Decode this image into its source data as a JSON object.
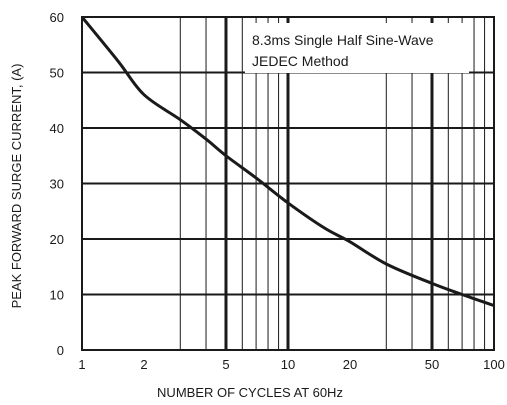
{
  "chart_data": {
    "type": "line",
    "xlabel": "NUMBER OF CYCLES AT 60Hz",
    "ylabel": "PEAK  FORWARD SURGE CURRENT, (A)",
    "x_scale": "log",
    "xlim": [
      1,
      100
    ],
    "ylim": [
      0,
      60
    ],
    "grid": true,
    "x_ticks": [
      {
        "value": 1,
        "label": "1"
      },
      {
        "value": 2,
        "label": "2"
      },
      {
        "value": 5,
        "label": "5"
      },
      {
        "value": 10,
        "label": "10"
      },
      {
        "value": 20,
        "label": "20"
      },
      {
        "value": 50,
        "label": "50"
      },
      {
        "value": 100,
        "label": "100"
      }
    ],
    "y_ticks": [
      {
        "value": 0,
        "label": "0"
      },
      {
        "value": 10,
        "label": "10"
      },
      {
        "value": 20,
        "label": "20"
      },
      {
        "value": 30,
        "label": "30"
      },
      {
        "value": 40,
        "label": "40"
      },
      {
        "value": 50,
        "label": "50"
      },
      {
        "value": 60,
        "label": "60"
      }
    ],
    "x_minor_gridlines": [
      3,
      4,
      6,
      7,
      8,
      9,
      30,
      40,
      60,
      70,
      80,
      90
    ],
    "x_major_gridlines": [
      5,
      10,
      50
    ],
    "y_gridlines": [
      10,
      20,
      30,
      40,
      50
    ],
    "annotation": [
      "8.3ms Single Half Sine-Wave",
      "JEDEC Method"
    ],
    "series": [
      {
        "x": [
          1,
          1.5,
          2,
          3,
          4,
          5,
          7,
          10,
          15,
          20,
          30,
          50,
          70,
          100
        ],
        "y": [
          60,
          52,
          46,
          41.5,
          38,
          35,
          31,
          26.5,
          22,
          19.5,
          15.5,
          12,
          10,
          8
        ]
      }
    ]
  }
}
